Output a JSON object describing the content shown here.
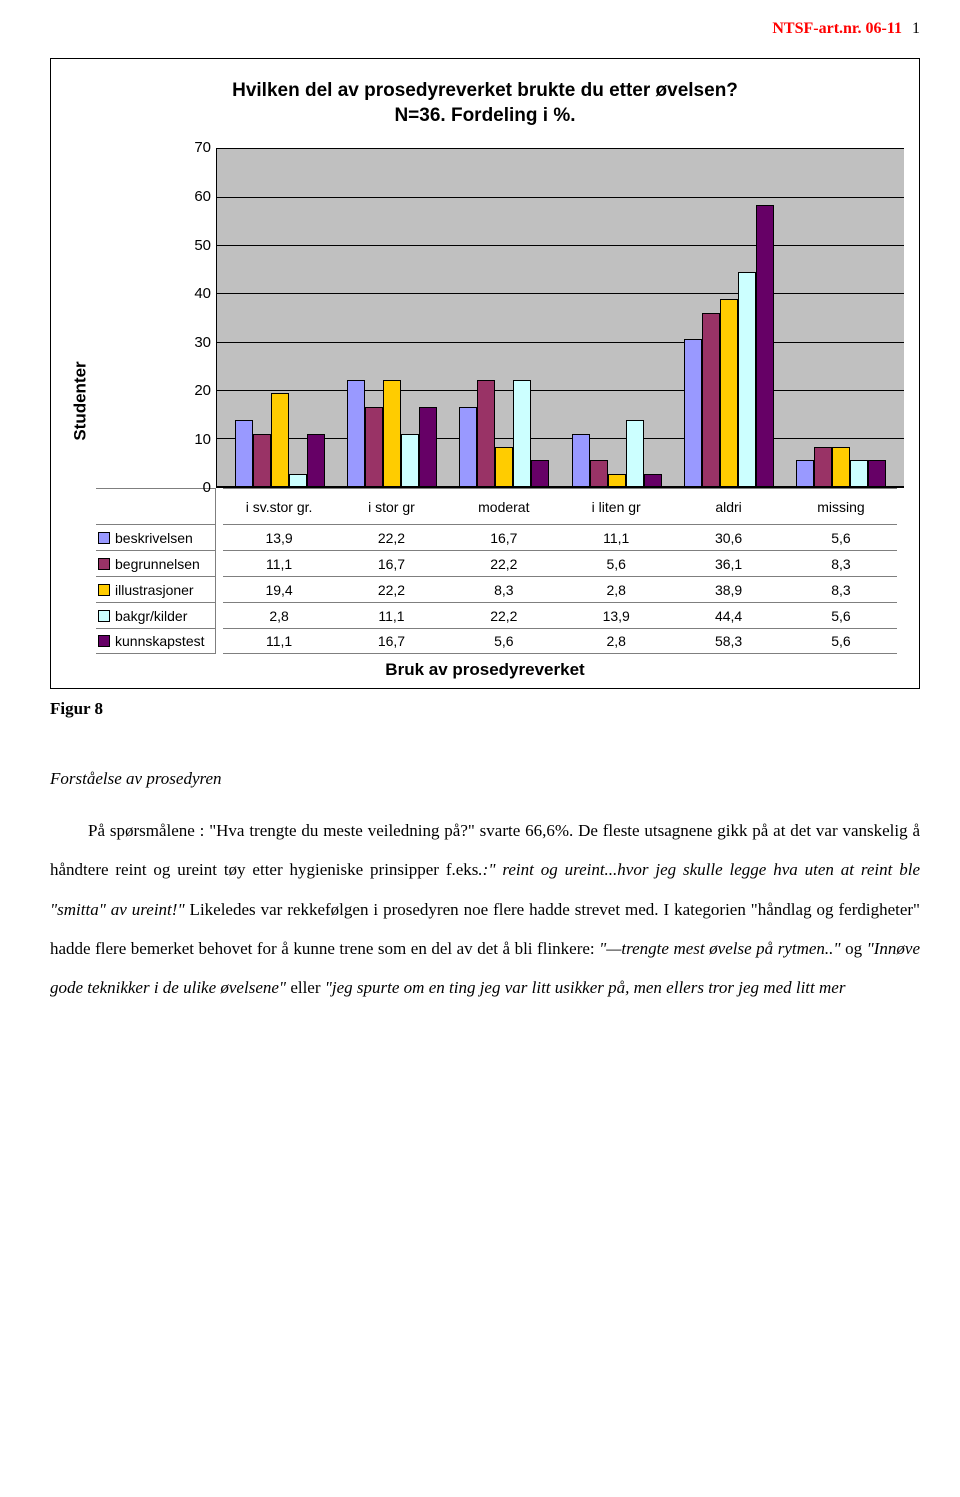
{
  "header": {
    "ref": "NTSF-art.nr. 06-11",
    "page": "1"
  },
  "chart": {
    "type": "bar",
    "title_line1": "Hvilken del av prosedyreverket brukte du etter øvelsen?",
    "title_line2": "N=36. Fordeling i %.",
    "y_label": "Studenter",
    "x_label": "Bruk av prosedyreverket",
    "ymax": 70,
    "ytick_step": 10,
    "yticks": [
      "70",
      "60",
      "50",
      "40",
      "30",
      "20",
      "10",
      "0"
    ],
    "background_color": "#c0c0c0",
    "grid_color": "#000000",
    "categories": [
      "i sv.stor gr.",
      "i stor gr",
      "moderat",
      "i liten gr",
      "aldri",
      "missing"
    ],
    "series": [
      {
        "name": "beskrivelsen",
        "color": "#9999ff",
        "values": [
          13.9,
          22.2,
          16.7,
          11.1,
          30.6,
          5.6
        ],
        "labels": [
          "13,9",
          "22,2",
          "16,7",
          "11,1",
          "30,6",
          "5,6"
        ]
      },
      {
        "name": "begrunnelsen",
        "color": "#993366",
        "values": [
          11.1,
          16.7,
          22.2,
          5.6,
          36.1,
          8.3
        ],
        "labels": [
          "11,1",
          "16,7",
          "22,2",
          "5,6",
          "36,1",
          "8,3"
        ]
      },
      {
        "name": "illustrasjoner",
        "color": "#ffcc00",
        "values": [
          19.4,
          22.2,
          8.3,
          2.8,
          38.9,
          8.3
        ],
        "labels": [
          "19,4",
          "22,2",
          "8,3",
          "2,8",
          "38,9",
          "8,3"
        ]
      },
      {
        "name": "bakgr/kilder",
        "color": "#ccffff",
        "values": [
          2.8,
          11.1,
          22.2,
          13.9,
          44.4,
          5.6
        ],
        "labels": [
          "2,8",
          "11,1",
          "22,2",
          "13,9",
          "44,4",
          "5,6"
        ]
      },
      {
        "name": "kunnskapstest",
        "color": "#660066",
        "values": [
          11.1,
          16.7,
          5.6,
          2.8,
          58.3,
          5.6
        ],
        "labels": [
          "11,1",
          "16,7",
          "5,6",
          "2,8",
          "58,3",
          "5,6"
        ]
      }
    ]
  },
  "figure_label": "Figur 8",
  "section_heading": "Forståelse av prosedyren",
  "body": {
    "p1a": "På spørsmålene : \"Hva trengte du meste veiledning på?\" svarte 66,6%. De fleste utsagnene gikk på at det var vanskelig å håndtere reint og ureint tøy etter hygieniske prinsipper f.eks",
    "p1b": ".:\" reint og ureint...hvor jeg skulle legge hva uten at reint ble \"smitta\" av ureint!\"",
    "p1c": " Likeledes var rekkefølgen i prosedyren noe flere hadde strevet med. I kategorien \"håndlag og ferdigheter\" hadde flere bemerket behovet for å kunne trene som en del av det å bli flinkere: ",
    "p1d": "\"—trengte mest øvelse på rytmen..\"",
    "p1e": " og ",
    "p1f": "\"Innøve gode teknikker i de ulike øvelsene\"",
    "p1g": " eller ",
    "p1h": "\"jeg spurte om en ting jeg var litt usikker på, men ellers tror jeg med litt mer"
  }
}
